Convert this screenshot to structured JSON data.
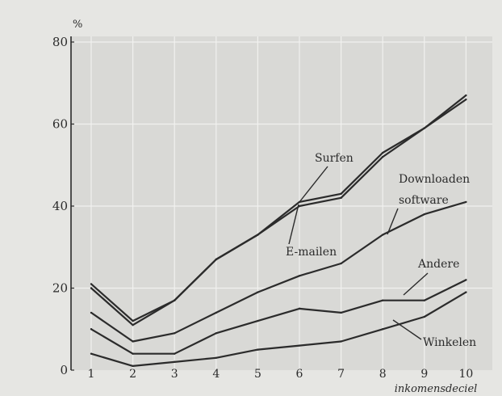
{
  "chart_data": {
    "type": "line",
    "y_unit": "%",
    "x_label": "inkomensdeciel",
    "x": [
      1,
      2,
      3,
      4,
      5,
      6,
      7,
      8,
      9,
      10
    ],
    "ylim": [
      0,
      80
    ],
    "yticks": [
      0,
      20,
      40,
      60,
      80
    ],
    "grid": true,
    "series": [
      {
        "name": "Surfen",
        "values": [
          21,
          12,
          17,
          27,
          33,
          41,
          43,
          53,
          59,
          67
        ]
      },
      {
        "name": "E-mailen",
        "values": [
          20,
          11,
          17,
          27,
          33,
          40,
          42,
          52,
          59,
          66
        ]
      },
      {
        "name": "Downloaden software",
        "values": [
          14,
          7,
          9,
          14,
          19,
          23,
          26,
          33,
          38,
          41
        ]
      },
      {
        "name": "Andere",
        "values": [
          10,
          4,
          4,
          9,
          12,
          15,
          14,
          17,
          17,
          22
        ]
      },
      {
        "name": "Winkelen",
        "values": [
          4,
          1,
          2,
          3,
          5,
          6,
          7,
          10,
          13,
          19
        ]
      }
    ],
    "series_label_lines": {
      "Downloaden software": [
        "Downloaden",
        "software"
      ]
    }
  },
  "colors": {
    "line": "#2b2b2b",
    "plot_background": "#d9d9d6",
    "grid": "#f1f1ef"
  }
}
